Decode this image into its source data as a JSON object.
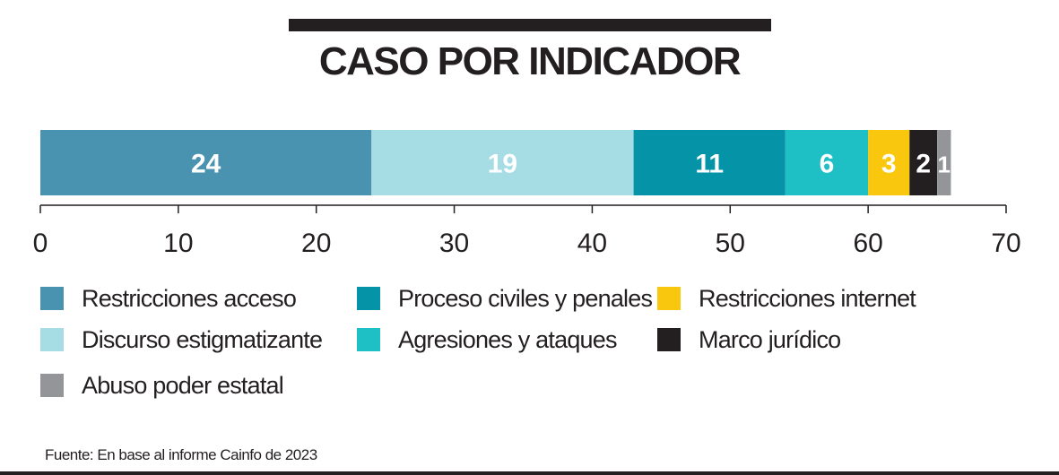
{
  "chart_data": {
    "type": "bar",
    "orientation": "horizontal-stacked",
    "title": "CASO POR INDICADOR",
    "series": [
      {
        "name": "Restricciones acceso",
        "value": 24,
        "color": "#4a93b0"
      },
      {
        "name": "Discurso estigmatizante",
        "value": 19,
        "color": "#a6dce3"
      },
      {
        "name": "Proceso civiles y penales",
        "value": 11,
        "color": "#0593a7"
      },
      {
        "name": "Agresiones y ataques",
        "value": 6,
        "color": "#1fbfc6"
      },
      {
        "name": "Restricciones internet",
        "value": 3,
        "color": "#f9c80e"
      },
      {
        "name": "Marco jurídico",
        "value": 2,
        "color": "#231f20"
      },
      {
        "name": "Abuso poder estatal",
        "value": 1,
        "color": "#939598"
      }
    ],
    "xlim": [
      0,
      70
    ],
    "xticks": [
      "0",
      "10",
      "20",
      "30",
      "40",
      "50",
      "60",
      "70"
    ],
    "legend_position": "bottom",
    "grid": false
  },
  "source": "Fuente: En base al informe Cainfo de 2023"
}
